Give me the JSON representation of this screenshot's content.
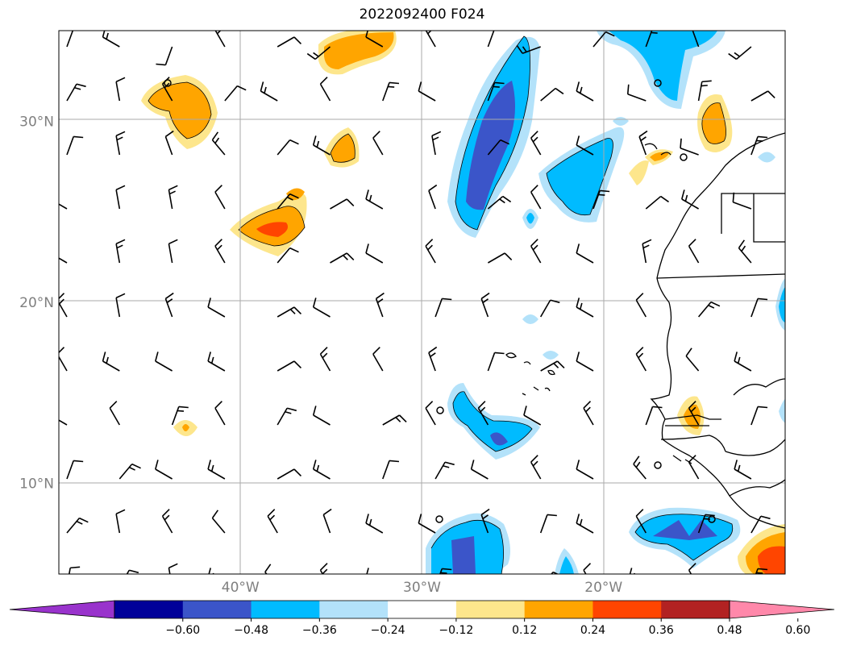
{
  "title": "2022092400 F024",
  "map": {
    "lat_labels": [
      {
        "lat": 30,
        "text": "30°N"
      },
      {
        "lat": 20,
        "text": "20°N"
      },
      {
        "lat": 10,
        "text": "10°N"
      }
    ],
    "lon_labels": [
      {
        "lon": -40,
        "text": "40°W"
      },
      {
        "lon": -30,
        "text": "30°W"
      },
      {
        "lon": -20,
        "text": "20°W"
      }
    ],
    "extent": {
      "lon_min": -50,
      "lon_max": -10,
      "lat_min": 5,
      "lat_max": 35
    }
  },
  "colorbar": {
    "colors": [
      "#9933cc",
      "#000099",
      "#3b55c9",
      "#00bbff",
      "#b3e2fa",
      "#ffffff",
      "#fde68c",
      "#ffa500",
      "#ff4500",
      "#b22222",
      "#ff88aa"
    ],
    "labels": [
      "−0.60",
      "−0.48",
      "−0.36",
      "−0.24",
      "−0.12",
      "0.12",
      "0.24",
      "0.36",
      "0.48",
      "0.60"
    ]
  }
}
